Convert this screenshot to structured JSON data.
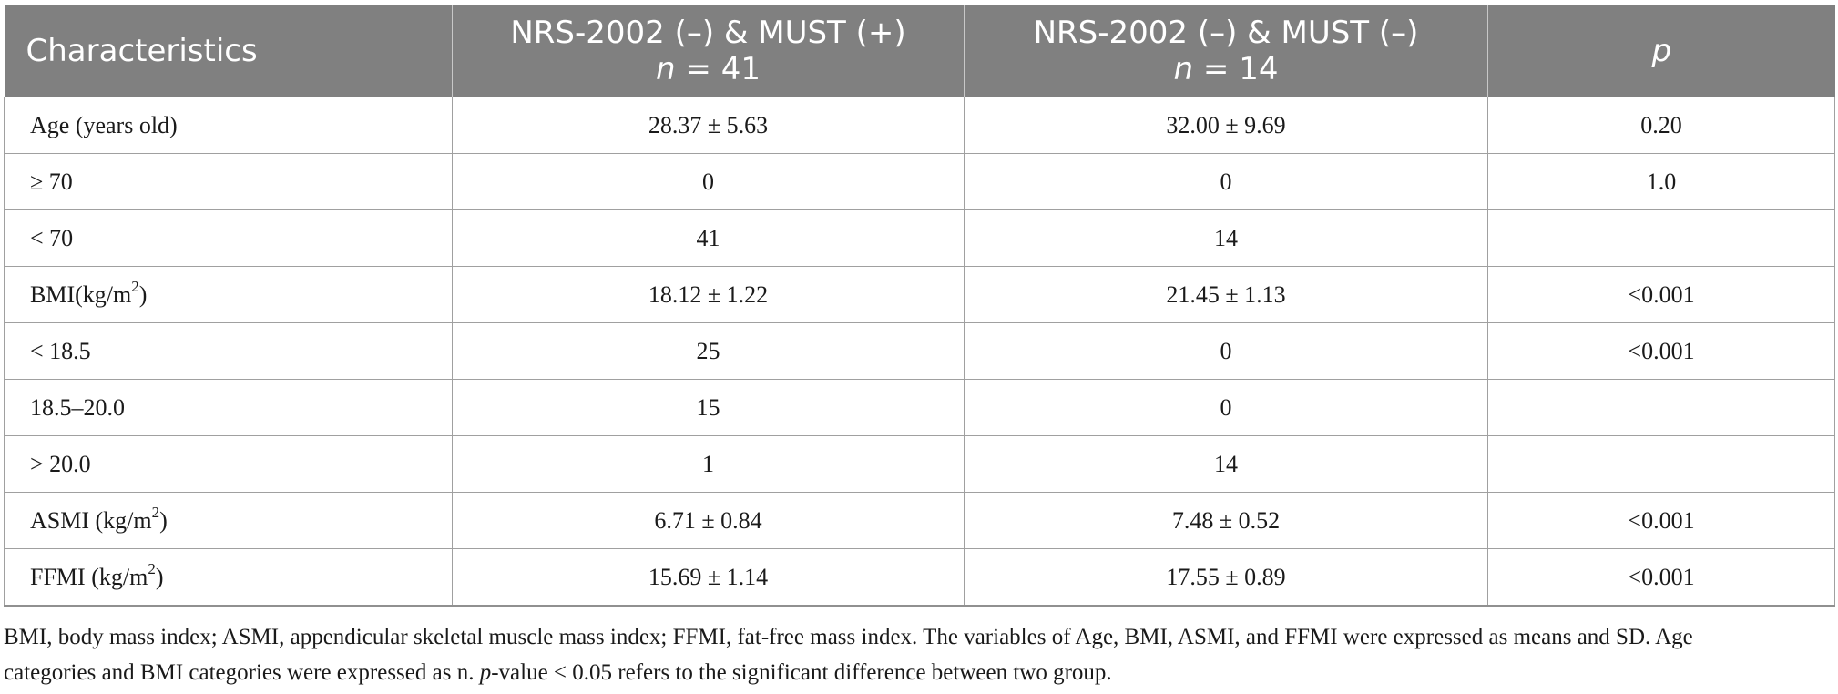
{
  "table": {
    "headers": {
      "characteristics": "Characteristics",
      "group1_name": "NRS-2002 (–) & MUST (+)",
      "group1_n_label": "n",
      "group1_n_value": " = 41",
      "group2_name": "NRS-2002 (–) & MUST (–)",
      "group2_n_label": "n",
      "group2_n_value": " = 14",
      "p": "p"
    },
    "rows": [
      {
        "label": "Age (years old)",
        "g1": "28.37 ± 5.63",
        "g2": "32.00 ± 9.69",
        "p": "0.20"
      },
      {
        "label": "≥ 70",
        "g1": "0",
        "g2": "0",
        "p": "1.0"
      },
      {
        "label": "< 70",
        "g1": "41",
        "g2": "14",
        "p": ""
      },
      {
        "label": "BMI(kg/m",
        "sup": "2",
        "label_end": ")",
        "g1": "18.12 ± 1.22",
        "g2": "21.45 ± 1.13",
        "p": "<0.001"
      },
      {
        "label": "< 18.5",
        "g1": "25",
        "g2": "0",
        "p": "<0.001"
      },
      {
        "label": "18.5–20.0",
        "g1": "15",
        "g2": "0",
        "p": ""
      },
      {
        "label": "> 20.0",
        "g1": "1",
        "g2": "14",
        "p": ""
      },
      {
        "label": "ASMI (kg/m",
        "sup": "2",
        "label_end": ")",
        "g1": "6.71 ± 0.84",
        "g2": "7.48 ± 0.52",
        "p": "<0.001"
      },
      {
        "label": "FFMI (kg/m",
        "sup": "2",
        "label_end": ")",
        "g1": "15.69 ± 1.14",
        "g2": "17.55 ± 0.89",
        "p": "<0.001"
      }
    ]
  },
  "footnote": {
    "line1": "BMI, body mass index; ASMI, appendicular skeletal muscle mass index; FFMI, fat-free mass index. The variables of Age, BMI, ASMI, and FFMI were expressed as means and SD. Age",
    "line2_start": "categories and BMI categories were expressed as n. ",
    "line2_italic": "p",
    "line2_end": "-value < 0.05 refers to the significant difference between two group."
  }
}
